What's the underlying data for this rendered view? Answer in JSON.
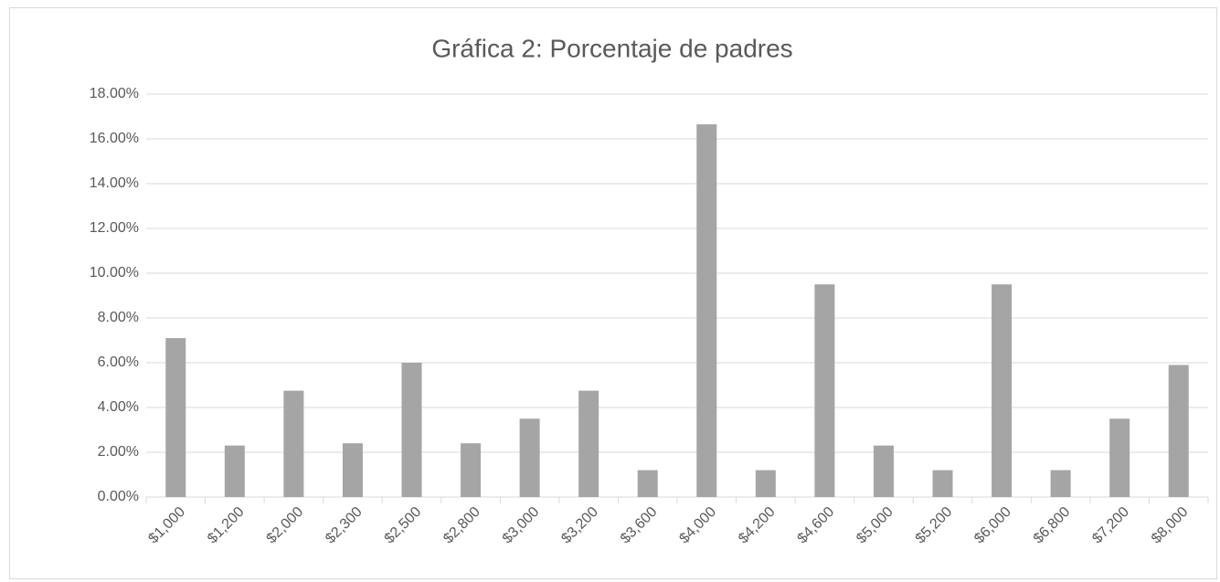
{
  "chart_data": {
    "type": "bar",
    "title": "Gráfica 2: Porcentaje de padres",
    "categories": [
      "$1,000",
      "$1,200",
      "$2,000",
      "$2,300",
      "$2,500",
      "$2,800",
      "$3,000",
      "$3,200",
      "$3,600",
      "$4,000",
      "$4,200",
      "$4,600",
      "$5,000",
      "$5,200",
      "$6,000",
      "$6,800",
      "$7,200",
      "$8,000"
    ],
    "values": [
      7.1,
      2.3,
      4.75,
      2.4,
      6.0,
      2.4,
      3.5,
      4.75,
      1.2,
      16.65,
      1.2,
      9.5,
      2.3,
      1.2,
      9.5,
      1.2,
      3.5,
      5.9
    ],
    "color": "#a5a5a5",
    "ylim": [
      0,
      18
    ],
    "yticks": [
      {
        "value": 0,
        "label": "0.00%"
      },
      {
        "value": 2,
        "label": "2.00%"
      },
      {
        "value": 4,
        "label": "4.00%"
      },
      {
        "value": 6,
        "label": "6.00%"
      },
      {
        "value": 8,
        "label": "8.00%"
      },
      {
        "value": 10,
        "label": "10.00%"
      },
      {
        "value": 12,
        "label": "12.00%"
      },
      {
        "value": 14,
        "label": "14.00%"
      },
      {
        "value": 16,
        "label": "16.00%"
      },
      {
        "value": 18,
        "label": "18.00%"
      }
    ],
    "grid": true
  }
}
